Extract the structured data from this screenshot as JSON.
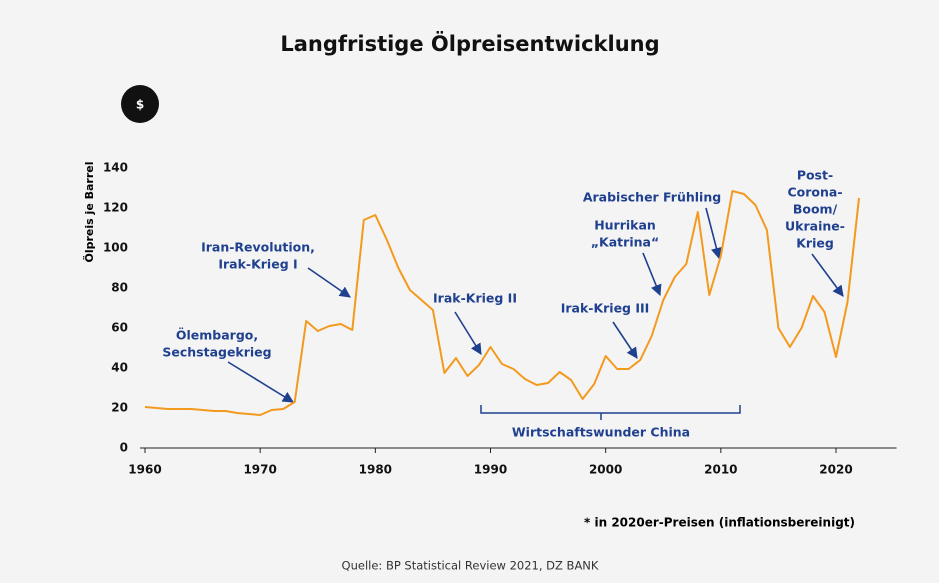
{
  "chart_data": {
    "type": "line",
    "title": "Langfristige Ölpreisentwicklung",
    "icon": "$",
    "ylabel": "Ölpreis je Barrel",
    "x": [
      1960,
      1961,
      1962,
      1963,
      1964,
      1965,
      1966,
      1967,
      1968,
      1969,
      1970,
      1971,
      1972,
      1973,
      1974,
      1975,
      1976,
      1977,
      1978,
      1979,
      1980,
      1981,
      1982,
      1983,
      1984,
      1985,
      1986,
      1987,
      1988,
      1989,
      1990,
      1991,
      1992,
      1993,
      1994,
      1995,
      1996,
      1997,
      1998,
      1999,
      2000,
      2001,
      2002,
      2003,
      2004,
      2005,
      2006,
      2007,
      2008,
      2009,
      2010,
      2011,
      2012,
      2013,
      2014,
      2015,
      2016,
      2017,
      2018,
      2019,
      2020,
      2021,
      2022
    ],
    "series": [
      {
        "name": "Ölpreis",
        "color": "#f39a1e",
        "values": [
          20.5,
          20,
          19.5,
          19.5,
          19.5,
          19,
          18.5,
          18.5,
          17.5,
          17,
          16.5,
          19,
          19.5,
          23,
          63.5,
          58.5,
          61,
          62,
          59,
          114,
          116.5,
          104,
          90,
          79,
          74,
          69,
          37.5,
          45,
          36,
          41.5,
          50.5,
          42,
          39.5,
          34.5,
          31.5,
          32.5,
          38,
          34,
          24.5,
          32,
          46,
          39.5,
          39.5,
          44,
          56,
          74,
          85.5,
          92,
          118,
          76.5,
          96,
          128.5,
          127,
          121.5,
          109,
          60,
          50.5,
          60,
          76,
          68,
          45.5,
          73,
          125
        ]
      }
    ],
    "xlim": [
      1960,
      2025
    ],
    "xticks": [
      1960,
      1970,
      1980,
      1990,
      2000,
      2010,
      2020
    ],
    "ylim": [
      0,
      140
    ],
    "yticks": [
      0,
      20,
      40,
      60,
      80,
      100,
      120,
      140
    ],
    "grid": false,
    "annotations": [
      {
        "lines": [
          "Ölembargo,",
          "Sechstagekrieg"
        ]
      },
      {
        "lines": [
          "Iran-Revolution,",
          "Irak-Krieg I"
        ]
      },
      {
        "lines": [
          "Irak-Krieg II"
        ]
      },
      {
        "lines": [
          "Irak-Krieg III"
        ]
      },
      {
        "lines": [
          "Hurrikan",
          "„Katrina“"
        ]
      },
      {
        "lines": [
          "Arabischer Frühling"
        ]
      },
      {
        "lines": [
          "Post-",
          "Corona-",
          "Boom/",
          "Ukraine-",
          "Krieg"
        ]
      }
    ],
    "bracket_label": "Wirtschaftswunder China",
    "footnote": "* in 2020er-Preisen (inflationsbereinigt)",
    "source": "Quelle: BP Statistical Review 2021, DZ BANK"
  }
}
